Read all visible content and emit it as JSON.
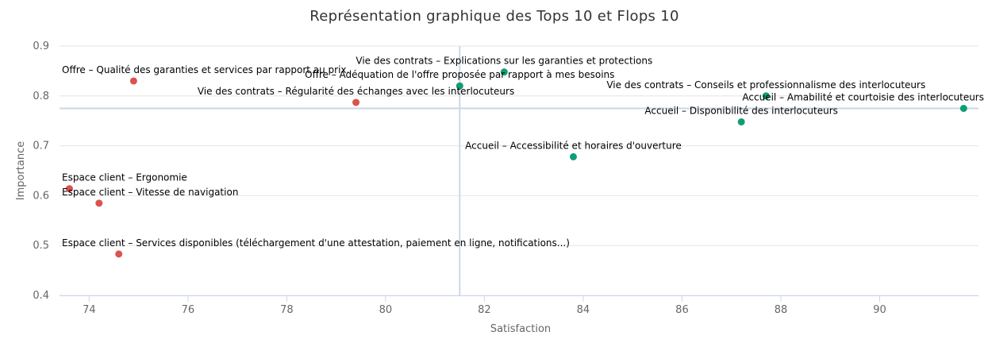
{
  "chart_data": {
    "type": "scatter",
    "title": "Représentation graphique des Tops 10 et Flops 10",
    "xlabel": "Satisfaction",
    "ylabel": "Importance",
    "xlim": [
      73.4,
      92.0
    ],
    "ylim": [
      0.4,
      0.9
    ],
    "x_ticks": [
      "74",
      "76",
      "78",
      "80",
      "82",
      "84",
      "86",
      "88",
      "90"
    ],
    "y_ticks": [
      "0.4",
      "0.5",
      "0.6",
      "0.7",
      "0.8",
      "0.9"
    ],
    "x_tick_values": [
      74,
      76,
      78,
      80,
      82,
      84,
      86,
      88,
      90
    ],
    "y_tick_values": [
      0.4,
      0.5,
      0.6,
      0.7,
      0.8,
      0.9
    ],
    "reference_lines": {
      "x": 81.5,
      "y": 0.775
    },
    "grid": true,
    "legend": "none",
    "colors": {
      "flop": "#d9534f",
      "top": "#0f9d76",
      "reference": "#ccd6eb"
    },
    "points": [
      {
        "label": "Offre – Qualité des garanties et services par rapport au prix.",
        "x": 74.9,
        "y": 0.83,
        "group": "flop"
      },
      {
        "label": "Vie des contrats – Régularité des échanges avec les interlocuteurs",
        "x": 79.4,
        "y": 0.787,
        "group": "flop"
      },
      {
        "label": "Espace client – Ergonomie",
        "x": 73.6,
        "y": 0.614,
        "group": "flop"
      },
      {
        "label": "Espace client – Vitesse de navigation",
        "x": 74.2,
        "y": 0.585,
        "group": "flop"
      },
      {
        "label": "Espace client – Services disponibles (téléchargement d'une attestation, paiement en ligne, notifications...)",
        "x": 74.6,
        "y": 0.483,
        "group": "flop"
      },
      {
        "label": "Vie des contrats – Explications sur les garanties et protections",
        "x": 82.4,
        "y": 0.848,
        "group": "top"
      },
      {
        "label": "Offre – Adéquation de l'offre proposée par rapport à mes besoins",
        "x": 81.5,
        "y": 0.82,
        "group": "top"
      },
      {
        "label": "Vie des contrats – Conseils et professionnalisme des interlocuteurs",
        "x": 87.7,
        "y": 0.8,
        "group": "top"
      },
      {
        "label": "Accueil – Amabilité et courtoisie des interlocuteurs",
        "x": 91.7,
        "y": 0.775,
        "group": "top"
      },
      {
        "label": "Accueil – Disponibilité des interlocuteurs",
        "x": 87.2,
        "y": 0.748,
        "group": "top"
      },
      {
        "label": "Accueil – Accessibilité et horaires d'ouverture",
        "x": 83.8,
        "y": 0.678,
        "group": "top"
      }
    ]
  }
}
